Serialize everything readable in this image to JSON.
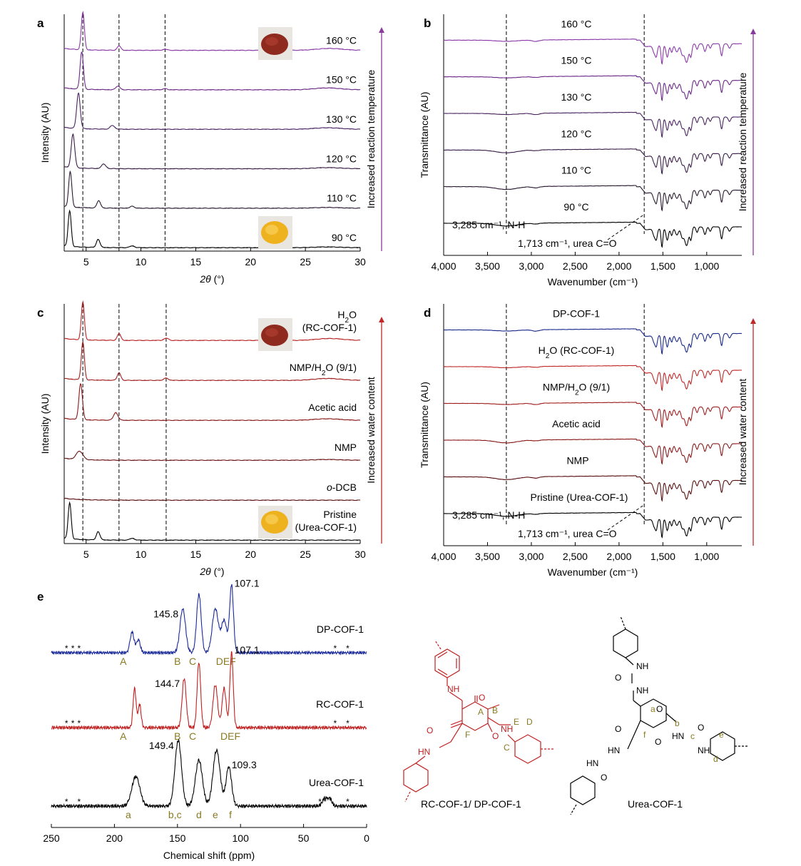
{
  "chart_data": [
    {
      "panel": "a",
      "type": "line",
      "title": "",
      "xlabel_italic": "2θ",
      "xlabel_suffix": " (°)",
      "ylabel": "Intensity (AU)",
      "xlim": [
        3,
        30
      ],
      "ylim": [
        0,
        6.4
      ],
      "xticks": [
        5,
        10,
        15,
        20,
        25,
        30
      ],
      "vlines": [
        4.7,
        8.0,
        12.2
      ],
      "arrow_label": "Increased reaction temperature",
      "arrow_color": "#8a3a9a",
      "series": [
        {
          "name": "90 °C",
          "color": "#000000",
          "offset": 0.0,
          "scale": 1.0,
          "peaks": [
            [
              3.5,
              0.95,
              0.14
            ],
            [
              6.1,
              0.22,
              0.16
            ],
            [
              9.2,
              0.05,
              0.2
            ],
            [
              27,
              0.02,
              1.2
            ]
          ]
        },
        {
          "name": "110 °C",
          "color": "#2a1a30",
          "offset": 1.0,
          "scale": 1.0,
          "peaks": [
            [
              3.55,
              0.95,
              0.14
            ],
            [
              6.15,
              0.2,
              0.16
            ],
            [
              9.2,
              0.05,
              0.2
            ],
            [
              27,
              0.02,
              1.2
            ]
          ]
        },
        {
          "name": "120 °C",
          "color": "#3a1f48",
          "offset": 2.0,
          "scale": 1.0,
          "peaks": [
            [
              3.8,
              0.9,
              0.16
            ],
            [
              6.6,
              0.12,
              0.2
            ],
            [
              27,
              0.03,
              1.2
            ]
          ]
        },
        {
          "name": "130 °C",
          "color": "#4a2560",
          "offset": 3.0,
          "scale": 1.0,
          "peaks": [
            [
              4.3,
              0.95,
              0.16
            ],
            [
              7.4,
              0.1,
              0.2
            ],
            [
              27,
              0.04,
              1.2
            ]
          ]
        },
        {
          "name": "150 °C",
          "color": "#6a2a88",
          "offset": 4.0,
          "scale": 1.0,
          "peaks": [
            [
              4.6,
              1.0,
              0.15
            ],
            [
              7.9,
              0.1,
              0.18
            ],
            [
              12.2,
              0.03,
              0.2
            ],
            [
              27,
              0.05,
              1.2
            ]
          ]
        },
        {
          "name": "160 °C",
          "color": "#8a3aa8",
          "offset": 5.0,
          "scale": 1.0,
          "peaks": [
            [
              4.7,
              1.0,
              0.14
            ],
            [
              8.0,
              0.12,
              0.16
            ],
            [
              12.2,
              0.03,
              0.2
            ],
            [
              27.2,
              0.05,
              1.2
            ]
          ]
        }
      ]
    },
    {
      "panel": "b",
      "type": "line",
      "title": "",
      "xlabel": "Wavenumber (cm⁻¹)",
      "ylabel": "Transmittance (AU)",
      "xlim": [
        4000,
        600
      ],
      "xticks": [
        4000,
        3500,
        3000,
        2500,
        2000,
        1500,
        1000
      ],
      "xticklabels": [
        "4,000",
        "3,500",
        "3,000",
        "2,500",
        "2,000",
        "1,500",
        "1,000"
      ],
      "vlines": [
        3285,
        1713
      ],
      "annotations": [
        {
          "text": "3,285 cm⁻¹, N-H"
        },
        {
          "text": "1,713 cm⁻¹, urea C=O"
        }
      ],
      "arrow_label": "Increased reaction temperature",
      "arrow_color": "#8a3a9a",
      "series": [
        {
          "name": "90 °C",
          "color": "#000000"
        },
        {
          "name": "110 °C",
          "color": "#2a1a30"
        },
        {
          "name": "120 °C",
          "color": "#3a1f48"
        },
        {
          "name": "130 °C",
          "color": "#4a2560"
        },
        {
          "name": "150 °C",
          "color": "#6a2a88"
        },
        {
          "name": "160 °C",
          "color": "#8a3aa8"
        }
      ]
    },
    {
      "panel": "c",
      "type": "line",
      "title": "",
      "xlabel_italic": "2θ",
      "xlabel_suffix": " (°)",
      "ylabel": "Intensity (AU)",
      "xlim": [
        3,
        30
      ],
      "xticks": [
        5,
        10,
        15,
        20,
        25,
        30
      ],
      "vlines": [
        4.7,
        8.0,
        12.3
      ],
      "arrow_label": "Increased water content",
      "arrow_color": "#c0282a",
      "series": [
        {
          "name_lines": [
            "Pristine",
            "(Urea-COF-1)"
          ],
          "color": "#000000",
          "peaks": [
            [
              3.5,
              0.95,
              0.14
            ],
            [
              6.1,
              0.22,
              0.16
            ],
            [
              9.2,
              0.05,
              0.2
            ]
          ]
        },
        {
          "name_italic": "o",
          "name_rest": "-DCB",
          "color": "#5a1010",
          "peaks": []
        },
        {
          "name": "NMP",
          "color": "#6a1414",
          "peaks": [
            [
              4.4,
              0.22,
              0.3
            ],
            [
              27,
              0.02,
              1.2
            ]
          ]
        },
        {
          "name": "Acetic acid",
          "color": "#8a1a1a",
          "peaks": [
            [
              4.5,
              0.95,
              0.16
            ],
            [
              7.7,
              0.2,
              0.2
            ],
            [
              27,
              0.04,
              1.2
            ]
          ]
        },
        {
          "name_sub": [
            "NMP/H",
            "2",
            "O (9/1)"
          ],
          "color": "#a02020",
          "peaks": [
            [
              4.7,
              1.0,
              0.14
            ],
            [
              8.0,
              0.2,
              0.16
            ],
            [
              12.3,
              0.06,
              0.2
            ],
            [
              27,
              0.05,
              1.2
            ]
          ]
        },
        {
          "name_sub": [
            "H",
            "2",
            "O"
          ],
          "name_line2": "(RC-COF-1)",
          "color": "#b82424",
          "peaks": [
            [
              4.7,
              1.0,
              0.14
            ],
            [
              8.0,
              0.18,
              0.16
            ],
            [
              12.3,
              0.06,
              0.2
            ],
            [
              27.2,
              0.05,
              1.2
            ]
          ]
        }
      ]
    },
    {
      "panel": "d",
      "type": "line",
      "title": "",
      "xlabel": "Wavenumber (cm⁻¹)",
      "ylabel": "Transmittance (AU)",
      "xlim": [
        4000,
        600
      ],
      "xticks": [
        4000,
        3500,
        3000,
        2500,
        2000,
        1500,
        1000
      ],
      "xticklabels": [
        "4,000",
        "3,500",
        "3,000",
        "2,500",
        "2,000",
        "1,500",
        "1,000"
      ],
      "vlines": [
        3285,
        1713
      ],
      "annotations": [
        {
          "text": "3,285 cm⁻¹, N-H"
        },
        {
          "text": "1,713 cm⁻¹, urea C=O"
        }
      ],
      "arrow_label": "Increased water content",
      "arrow_color": "#c0282a",
      "series": [
        {
          "name": "Pristine (Urea-COF-1)",
          "color": "#000000"
        },
        {
          "name": "NMP",
          "color": "#5a1010"
        },
        {
          "name": "Acetic acid",
          "color": "#8a1a1a"
        },
        {
          "name_sub": [
            "NMP/H",
            "2",
            "O (9/1)"
          ],
          "color": "#a02020"
        },
        {
          "name_sub": [
            "H",
            "2",
            "O (RC-COF-1)"
          ],
          "color": "#c02828"
        },
        {
          "name": "DP-COF-1",
          "color": "#1a2a8a"
        }
      ]
    },
    {
      "panel": "e",
      "type": "line",
      "title": "",
      "xlabel": "Chemical shift (ppm)",
      "xlim": [
        250,
        0
      ],
      "xticks": [
        250,
        200,
        150,
        100,
        50,
        0
      ],
      "series": [
        {
          "name": "DP-COF-1",
          "color": "#1a2a9a",
          "peaks_ppm": [
            [
              186,
              0.35,
              1.6
            ],
            [
              181,
              0.22,
              1.5
            ],
            [
              145.8,
              0.75,
              2.2
            ],
            [
              133,
              1.0,
              1.8
            ],
            [
              120,
              0.75,
              2.4
            ],
            [
              113,
              0.55,
              2.2
            ],
            [
              107.1,
              1.15,
              1.5
            ]
          ],
          "labels": [
            {
              "ppm": 145.8,
              "text": "145.8"
            },
            {
              "ppm": 107.1,
              "text": "107.1"
            }
          ],
          "assign": [
            "A",
            "B",
            "C",
            "DE",
            "F"
          ],
          "stars": [
            "*",
            "*",
            "*",
            "*",
            "*"
          ]
        },
        {
          "name": "RC-COF-1",
          "color": "#c02020",
          "peaks_ppm": [
            [
              184,
              0.6,
              1.2
            ],
            [
              180,
              0.35,
              1.2
            ],
            [
              144.7,
              0.75,
              1.6
            ],
            [
              133,
              1.0,
              1.4
            ],
            [
              120,
              0.65,
              1.8
            ],
            [
              113,
              0.6,
              1.6
            ],
            [
              107.1,
              1.15,
              1.3
            ]
          ],
          "labels": [
            {
              "ppm": 144.7,
              "text": "144.7"
            },
            {
              "ppm": 107.1,
              "text": "107.1"
            }
          ],
          "assign": [
            "A",
            "B",
            "C",
            "DEF"
          ],
          "stars": [
            "*",
            "*",
            "*",
            "*",
            "*"
          ]
        },
        {
          "name": "Urea-COF-1",
          "color": "#000000",
          "peaks_ppm": [
            [
              183,
              0.45,
              3.2
            ],
            [
              149.4,
              1.0,
              2.6
            ],
            [
              133,
              0.7,
              2.8
            ],
            [
              119,
              0.85,
              2.8
            ],
            [
              109.3,
              0.6,
              2.2
            ],
            [
              33,
              0.12,
              2.0
            ],
            [
              29,
              0.1,
              1.6
            ]
          ],
          "labels": [
            {
              "ppm": 149.4,
              "text": "149.4"
            },
            {
              "ppm": 109.3,
              "text": "109.3"
            }
          ],
          "assign": [
            "a",
            "b,c",
            "d",
            "e",
            "f"
          ],
          "stars": [
            "*",
            "*",
            "*",
            "*",
            "*"
          ]
        }
      ]
    }
  ],
  "panel_letters": {
    "a": "a",
    "b": "b",
    "c": "c",
    "d": "d",
    "e": "e"
  },
  "structures": {
    "left_caption": "RC-COF-1/ DP-COF-1",
    "right_caption": "Urea-COF-1",
    "left_color": "#c02020",
    "right_color": "#000000",
    "label_color": "#8a7a20",
    "left_labels": {
      "nh1": "NH",
      "nh2": "NH",
      "hn": "HN",
      "o1": "O",
      "o2": "O",
      "o3": "O",
      "A": "A",
      "B": "B",
      "C": "C",
      "D": "D",
      "E": "E",
      "F": "F"
    },
    "right_labels": {
      "nh1": "NH",
      "nh2": "NH",
      "nh3": "NH",
      "hn1": "HN",
      "hn2": "HN",
      "hn3": "HN",
      "o1": "O",
      "o2": "O",
      "o3": "O",
      "o4": "O",
      "o5": "O",
      "o6": "O",
      "a": "a",
      "b": "b",
      "c": "c",
      "d": "d",
      "e": "e",
      "f": "f"
    }
  }
}
